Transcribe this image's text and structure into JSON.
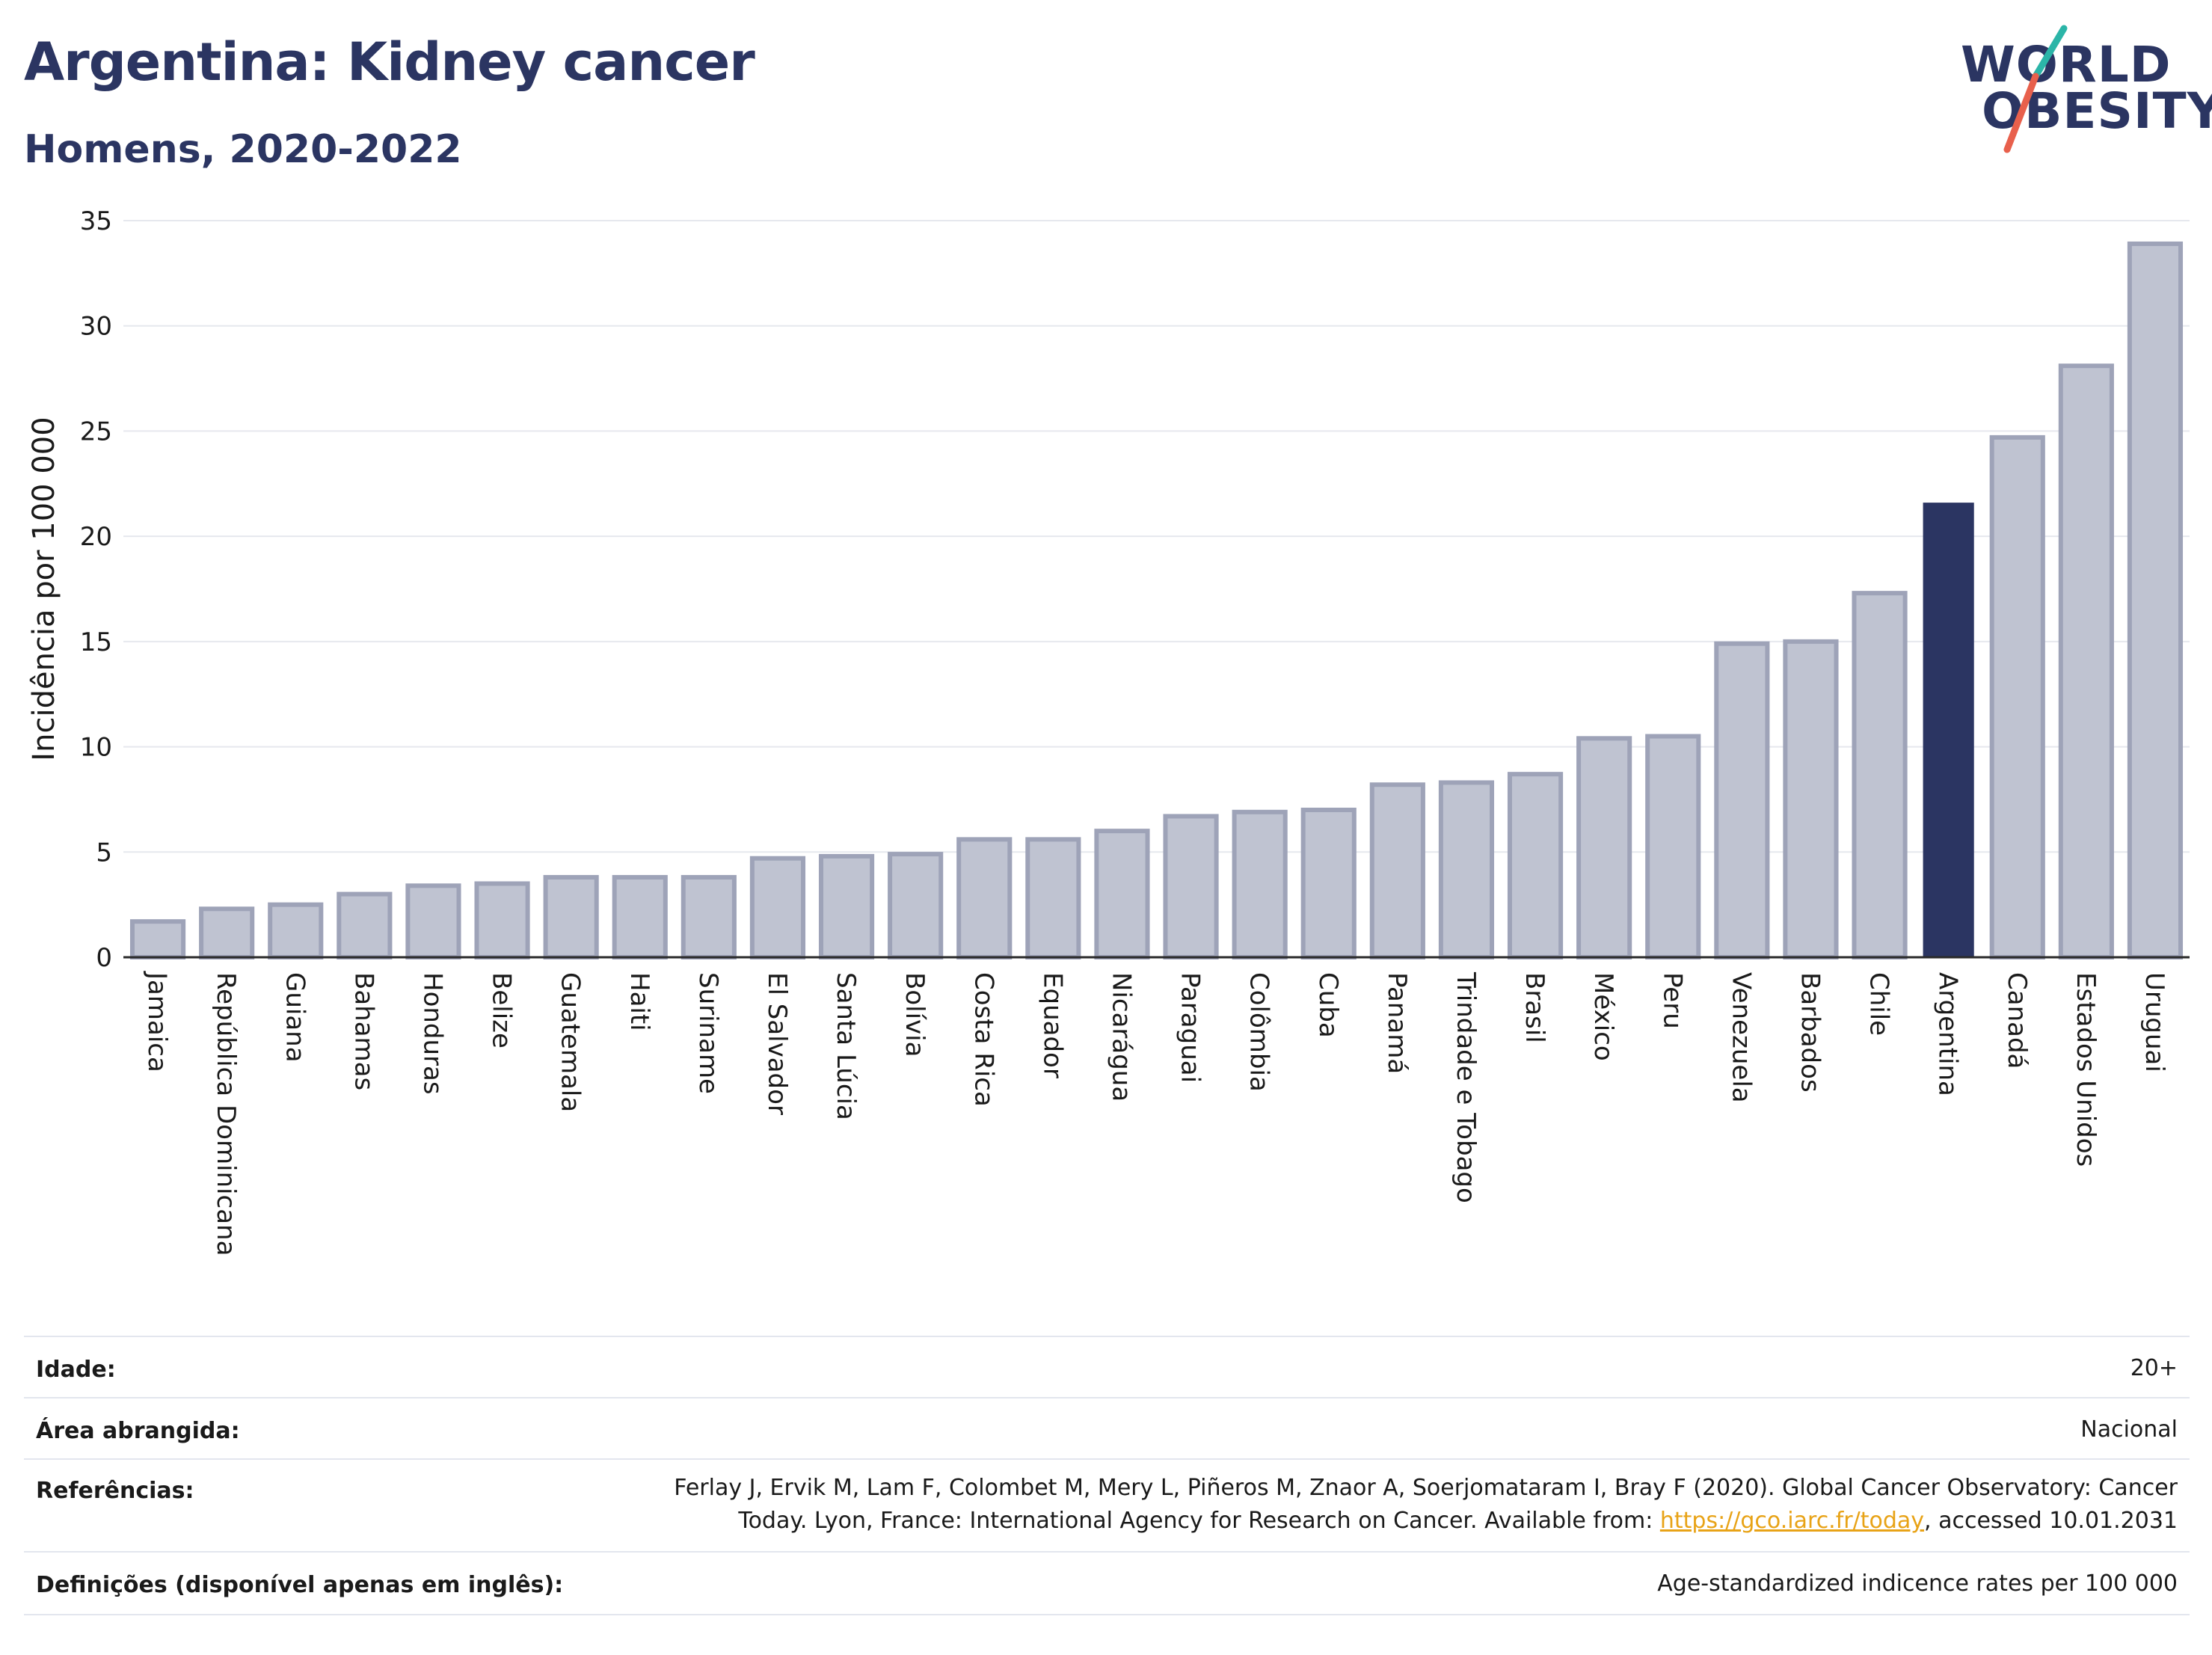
{
  "header": {
    "title": "Argentina: Kidney cancer",
    "subtitle": "Homens, 2020-2022"
  },
  "logo": {
    "line1": "WORLD",
    "line2": "OBESITY",
    "accent_colors": [
      "#2bb5a8",
      "#e8604c"
    ]
  },
  "chart_data": {
    "type": "bar",
    "ylabel": "Incidência por 100 000",
    "xlabel": "",
    "ylim": [
      0,
      35
    ],
    "yticks": [
      0,
      5,
      10,
      15,
      20,
      25,
      30,
      35
    ],
    "grid": true,
    "highlight": "Argentina",
    "colors": {
      "default_fill": "#bfc3d1",
      "default_stroke": "#9ea3b8",
      "highlight_fill": "#2b3562"
    },
    "categories": [
      "Jamaica",
      "República Dominicana",
      "Guiana",
      "Bahamas",
      "Honduras",
      "Belize",
      "Guatemala",
      "Haiti",
      "Suriname",
      "El Salvador",
      "Santa Lúcia",
      "Bolívia",
      "Costa Rica",
      "Equador",
      "Nicarágua",
      "Paraguai",
      "Colômbia",
      "Cuba",
      "Panamá",
      "Trindade e Tobago",
      "Brasil",
      "México",
      "Peru",
      "Venezuela",
      "Barbados",
      "Chile",
      "Argentina",
      "Canadá",
      "Estados Unidos",
      "Uruguai"
    ],
    "values": [
      1.7,
      2.3,
      2.5,
      3.0,
      3.4,
      3.5,
      3.8,
      3.8,
      3.8,
      4.7,
      4.8,
      4.9,
      5.6,
      5.6,
      6.0,
      6.7,
      6.9,
      7.0,
      8.2,
      8.3,
      8.7,
      10.4,
      10.5,
      14.9,
      15.0,
      17.3,
      21.6,
      24.7,
      28.1,
      33.9
    ]
  },
  "footer": {
    "age_label": "Idade:",
    "age_value": "20+",
    "area_label": "Área abrangida:",
    "area_value": "Nacional",
    "refs_label": "Referências:",
    "refs_line1": "Ferlay J, Ervik M, Lam F, Colombet M, Mery L, Piñeros M, Znaor A, Soerjomataram I, Bray F (2020). Global Cancer Observatory: Cancer",
    "refs_line2_prefix": "Today. Lyon, France: International Agency for Research on Cancer. Available from: ",
    "refs_link": "https://gco.iarc.fr/today",
    "refs_line2_suffix": ", accessed 10.01.2031",
    "defs_label": "Definições (disponível apenas em inglês):",
    "defs_value": "Age-standardized indicence rates per 100 000"
  }
}
